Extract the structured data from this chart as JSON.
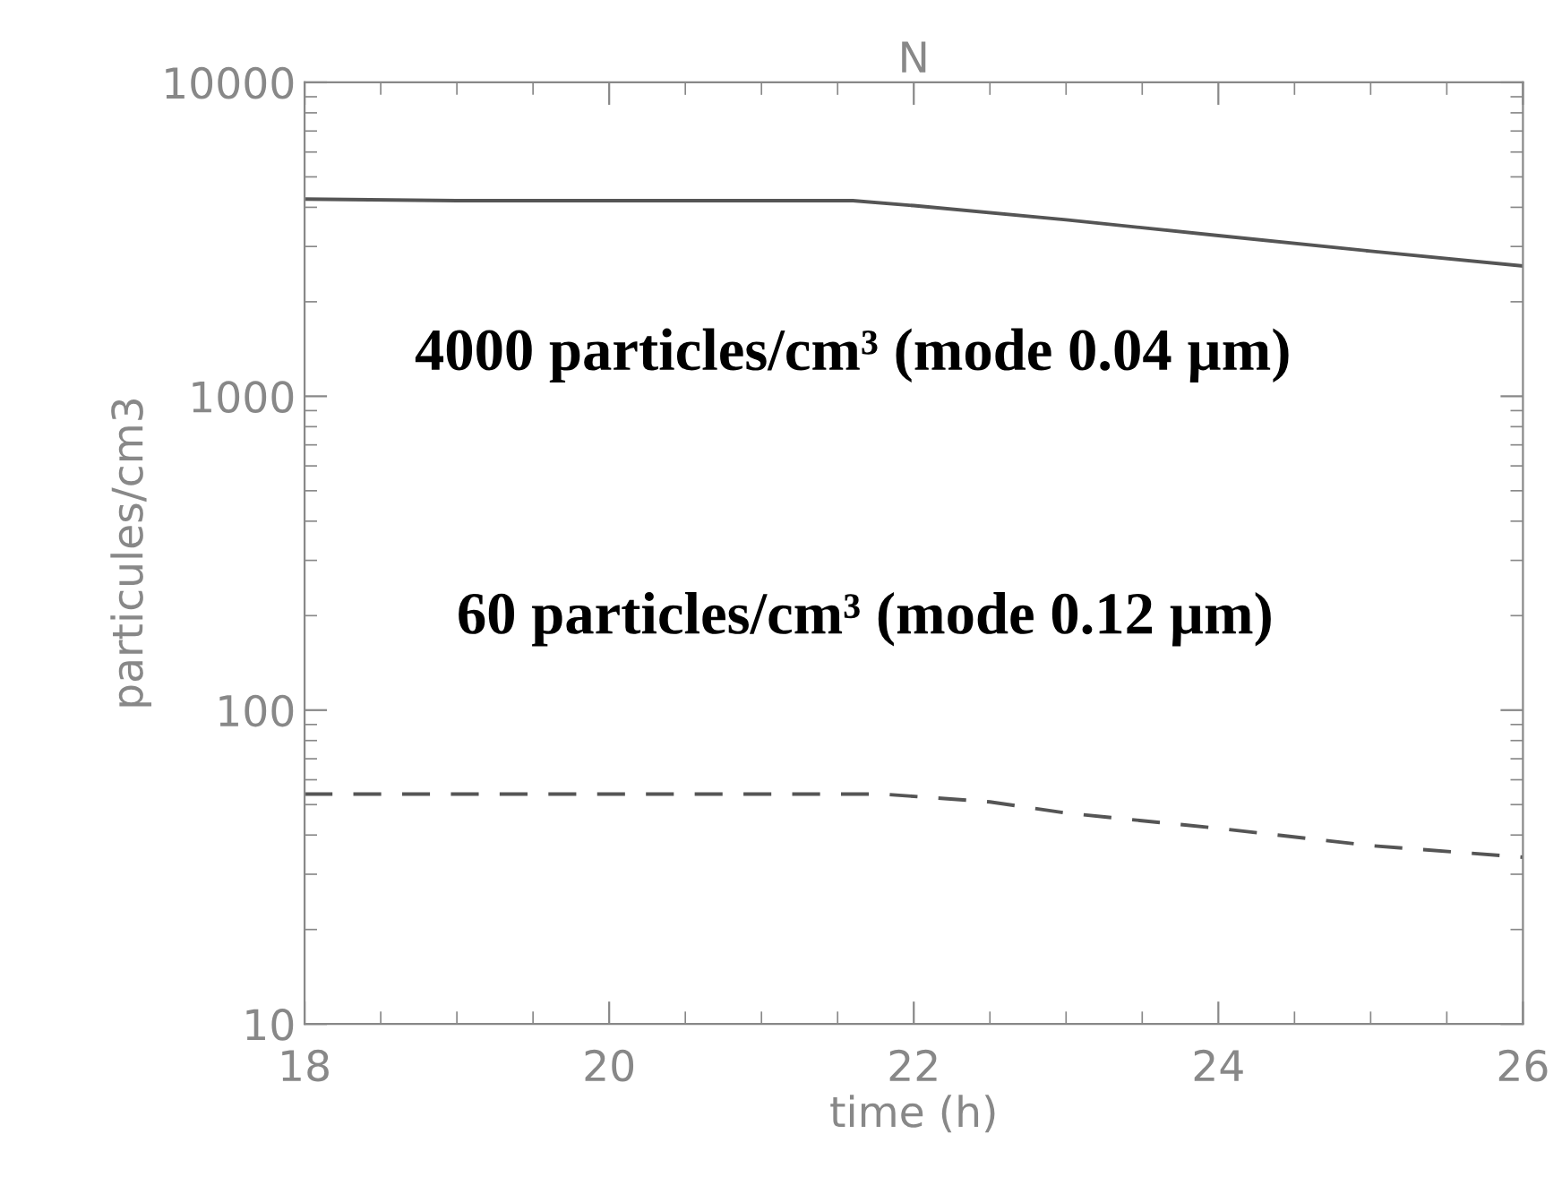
{
  "chart_data": {
    "type": "line",
    "title": "N",
    "xlabel": "time (h)",
    "ylabel": "particules/cm3",
    "log": "y",
    "xlim": [
      18,
      26
    ],
    "ylim": [
      10,
      10000
    ],
    "xticks": [
      18,
      20,
      22,
      24,
      26
    ],
    "yticks": [
      10,
      100,
      1000,
      10000
    ],
    "grid": false,
    "legend": false,
    "marker": "none",
    "series": [
      {
        "color": "#555555",
        "line_style": "solid",
        "x": [
          18,
          19,
          20,
          21,
          21.6,
          22,
          23,
          24,
          25,
          26
        ],
        "values": [
          4250,
          4200,
          4200,
          4200,
          4200,
          4050,
          3650,
          3250,
          2900,
          2600
        ]
      },
      {
        "color": "#555555",
        "line_style": "dashed",
        "x": [
          18,
          19,
          20,
          21,
          21.8,
          22.5,
          23,
          24,
          25,
          26
        ],
        "values": [
          54,
          54,
          54,
          54,
          54,
          51,
          47,
          42,
          37,
          34
        ]
      }
    ],
    "annotations": [
      "4000 particles/cm³ (mode 0.04 µm)",
      "60 particles/cm³ (mode 0.12 µm)"
    ]
  }
}
